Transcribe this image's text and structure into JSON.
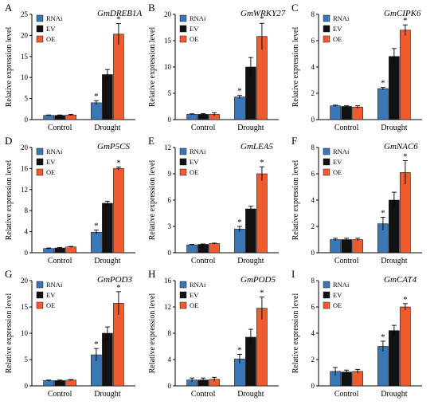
{
  "colors": {
    "RNAi": "#3a77b7",
    "EV": "#111111",
    "OE": "#ef5a2e"
  },
  "chart_data": [
    {
      "panel": "A",
      "type": "bar",
      "title": "GmDREB1A",
      "ylabel": "Relative expression level",
      "ylim": [
        0,
        25
      ],
      "ticks": [
        0,
        5,
        10,
        15,
        20,
        25
      ],
      "categories": [
        "Control",
        "Drought"
      ],
      "legend": "top-left",
      "series": [
        {
          "name": "RNAi",
          "values": [
            1,
            4
          ],
          "errors": [
            0.1,
            0.5
          ],
          "stars": [
            false,
            true
          ]
        },
        {
          "name": "EV",
          "values": [
            1,
            10.7
          ],
          "errors": [
            0.1,
            1.2
          ],
          "stars": [
            false,
            false
          ]
        },
        {
          "name": "OE",
          "values": [
            1.1,
            20.3
          ],
          "errors": [
            0.15,
            2.5
          ],
          "stars": [
            false,
            true
          ]
        }
      ]
    },
    {
      "panel": "B",
      "type": "bar",
      "title": "GmWRKY27",
      "ylabel": "Relative expression level",
      "ylim": [
        0,
        20
      ],
      "ticks": [
        0,
        5,
        10,
        15,
        20
      ],
      "categories": [
        "Control",
        "Drought"
      ],
      "legend": "top-left",
      "series": [
        {
          "name": "RNAi",
          "values": [
            1,
            4.3
          ],
          "errors": [
            0.1,
            0.3
          ],
          "stars": [
            false,
            true
          ]
        },
        {
          "name": "EV",
          "values": [
            1,
            10
          ],
          "errors": [
            0.15,
            1.8
          ],
          "stars": [
            false,
            false
          ]
        },
        {
          "name": "OE",
          "values": [
            1,
            15.8
          ],
          "errors": [
            0.3,
            2.5
          ],
          "stars": [
            false,
            true
          ]
        }
      ]
    },
    {
      "panel": "C",
      "type": "bar",
      "title": "GmCIPK6",
      "ylabel": "Relative expression level",
      "ylim": [
        0,
        8
      ],
      "ticks": [
        0,
        2,
        4,
        6,
        8
      ],
      "categories": [
        "Control",
        "Drought"
      ],
      "legend": "top-left",
      "series": [
        {
          "name": "RNAi",
          "values": [
            1.05,
            2.35
          ],
          "errors": [
            0.05,
            0.1
          ],
          "stars": [
            false,
            true
          ]
        },
        {
          "name": "EV",
          "values": [
            1,
            4.8
          ],
          "errors": [
            0.05,
            0.6
          ],
          "stars": [
            false,
            false
          ]
        },
        {
          "name": "OE",
          "values": [
            0.95,
            6.8
          ],
          "errors": [
            0.1,
            0.4
          ],
          "stars": [
            false,
            true
          ]
        }
      ]
    },
    {
      "panel": "D",
      "type": "bar",
      "title": "GmP5CS",
      "ylabel": "Relative expression level",
      "ylim": [
        0,
        20
      ],
      "ticks": [
        0,
        4,
        8,
        12,
        16,
        20
      ],
      "categories": [
        "Control",
        "Drought"
      ],
      "legend": "top-left",
      "series": [
        {
          "name": "RNAi",
          "values": [
            0.8,
            3.9
          ],
          "errors": [
            0.1,
            0.4
          ],
          "stars": [
            false,
            true
          ]
        },
        {
          "name": "EV",
          "values": [
            0.9,
            9.4
          ],
          "errors": [
            0.1,
            0.4
          ],
          "stars": [
            false,
            false
          ]
        },
        {
          "name": "OE",
          "values": [
            1.1,
            16
          ],
          "errors": [
            0.1,
            0.3
          ],
          "stars": [
            false,
            true
          ]
        }
      ]
    },
    {
      "panel": "E",
      "type": "bar",
      "title": "GmLEA5",
      "ylabel": "Relative expression level",
      "ylim": [
        0,
        12
      ],
      "ticks": [
        0,
        3,
        6,
        9,
        12
      ],
      "categories": [
        "Control",
        "Drought"
      ],
      "legend": "top-left",
      "series": [
        {
          "name": "RNAi",
          "values": [
            0.9,
            2.7
          ],
          "errors": [
            0.05,
            0.3
          ],
          "stars": [
            false,
            true
          ]
        },
        {
          "name": "EV",
          "values": [
            0.95,
            5
          ],
          "errors": [
            0.05,
            0.3
          ],
          "stars": [
            false,
            false
          ]
        },
        {
          "name": "OE",
          "values": [
            1.05,
            9
          ],
          "errors": [
            0.05,
            0.8
          ],
          "stars": [
            false,
            true
          ]
        }
      ]
    },
    {
      "panel": "F",
      "type": "bar",
      "title": "GmNAC6",
      "ylabel": "Relative expression level",
      "ylim": [
        0,
        8
      ],
      "ticks": [
        0,
        2,
        4,
        6,
        8
      ],
      "categories": [
        "Control",
        "Drought"
      ],
      "legend": "top-left",
      "series": [
        {
          "name": "RNAi",
          "values": [
            1,
            2.2
          ],
          "errors": [
            0.1,
            0.5
          ],
          "stars": [
            false,
            true
          ]
        },
        {
          "name": "EV",
          "values": [
            1,
            4
          ],
          "errors": [
            0.1,
            0.6
          ],
          "stars": [
            false,
            false
          ]
        },
        {
          "name": "OE",
          "values": [
            1,
            6.1
          ],
          "errors": [
            0.1,
            0.9
          ],
          "stars": [
            false,
            true
          ]
        }
      ]
    },
    {
      "panel": "G",
      "type": "bar",
      "title": "GmPOD3",
      "ylabel": "Relative expression level",
      "ylim": [
        0,
        20
      ],
      "ticks": [
        0,
        5,
        10,
        15,
        20
      ],
      "categories": [
        "Control",
        "Drought"
      ],
      "legend": "top-left",
      "series": [
        {
          "name": "RNAi",
          "values": [
            1,
            5.9
          ],
          "errors": [
            0.1,
            1.2
          ],
          "stars": [
            false,
            true
          ]
        },
        {
          "name": "EV",
          "values": [
            1,
            10
          ],
          "errors": [
            0.1,
            1.2
          ],
          "stars": [
            false,
            false
          ]
        },
        {
          "name": "OE",
          "values": [
            1.1,
            15.7
          ],
          "errors": [
            0.1,
            2.2
          ],
          "stars": [
            false,
            true
          ]
        }
      ]
    },
    {
      "panel": "H",
      "type": "bar",
      "title": "GmPOD5",
      "ylabel": "Relative expression level",
      "ylim": [
        0,
        16
      ],
      "ticks": [
        0,
        4,
        8,
        12,
        16
      ],
      "categories": [
        "Control",
        "Drought"
      ],
      "legend": "top-left",
      "series": [
        {
          "name": "RNAi",
          "values": [
            0.9,
            4.1
          ],
          "errors": [
            0.3,
            0.7
          ],
          "stars": [
            false,
            true
          ]
        },
        {
          "name": "EV",
          "values": [
            0.9,
            7.4
          ],
          "errors": [
            0.3,
            1.2
          ],
          "stars": [
            false,
            false
          ]
        },
        {
          "name": "OE",
          "values": [
            1,
            11.8
          ],
          "errors": [
            0.3,
            1.7
          ],
          "stars": [
            false,
            true
          ]
        }
      ]
    },
    {
      "panel": "I",
      "type": "bar",
      "title": "GmCAT4",
      "ylabel": "Relative expression level",
      "ylim": [
        0,
        8
      ],
      "ticks": [
        0,
        2,
        4,
        6,
        8
      ],
      "categories": [
        "Control",
        "Drought"
      ],
      "legend": "top-left",
      "series": [
        {
          "name": "RNAi",
          "values": [
            1.1,
            3
          ],
          "errors": [
            0.3,
            0.4
          ],
          "stars": [
            false,
            true
          ]
        },
        {
          "name": "EV",
          "values": [
            1.05,
            4.2
          ],
          "errors": [
            0.15,
            0.4
          ],
          "stars": [
            false,
            false
          ]
        },
        {
          "name": "OE",
          "values": [
            1.1,
            6
          ],
          "errors": [
            0.15,
            0.25
          ],
          "stars": [
            false,
            true
          ]
        }
      ]
    }
  ]
}
